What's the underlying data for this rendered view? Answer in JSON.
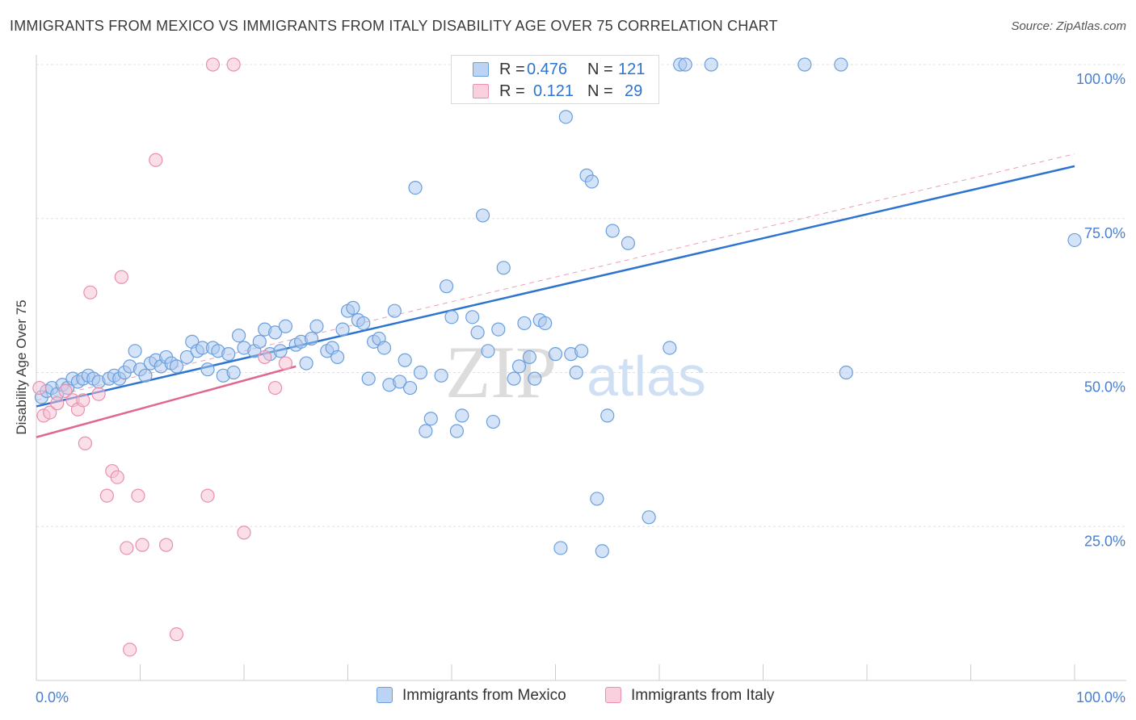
{
  "title": "IMMIGRANTS FROM MEXICO VS IMMIGRANTS FROM ITALY DISABILITY AGE OVER 75 CORRELATION CHART",
  "source": "Source: ZipAtlas.com",
  "watermark": {
    "zip": "ZIP",
    "atlas": "atlas"
  },
  "legend": {
    "r_label": "R =",
    "n_label": "N =",
    "rows": [
      {
        "r": "0.476",
        "n": "121"
      },
      {
        "r": "0.121",
        "n": "29"
      }
    ]
  },
  "chart_data": {
    "type": "scatter",
    "xlabel": "",
    "ylabel": "Disability Age Over 75",
    "xlim": [
      0,
      100
    ],
    "ylim": [
      0,
      100
    ],
    "x_tick_labels": {
      "left": "0.0%",
      "right": "100.0%"
    },
    "y_tick_labels": [
      {
        "value": 25,
        "label": "25.0%"
      },
      {
        "value": 50,
        "label": "50.0%"
      },
      {
        "value": 75,
        "label": "75.0%"
      },
      {
        "value": 100,
        "label": "100.0%"
      }
    ],
    "grid": true,
    "legend_position": "top-center",
    "colors": {
      "mexico_fill": "#aac8f0",
      "mexico_stroke": "#6a9fdc",
      "mexico_line": "#2d74d0",
      "italy_fill": "#f8c0d2",
      "italy_stroke": "#e890ad",
      "italy_line": "#e06890",
      "axis_text": "#4a7fd0"
    },
    "series": [
      {
        "name": "Immigrants from Mexico",
        "trend": {
          "x": [
            0,
            100
          ],
          "y": [
            44.5,
            83.5
          ]
        },
        "trend_extension": {
          "x": [
            0,
            100
          ],
          "y": [
            45.5,
            85.5
          ]
        },
        "points": [
          [
            0.5,
            46
          ],
          [
            1,
            47
          ],
          [
            1.5,
            47.5
          ],
          [
            2,
            46.5
          ],
          [
            2.5,
            48
          ],
          [
            3,
            47.5
          ],
          [
            3.5,
            49
          ],
          [
            4,
            48.5
          ],
          [
            4.5,
            49
          ],
          [
            5,
            49.5
          ],
          [
            5.5,
            49
          ],
          [
            6,
            48.5
          ],
          [
            7,
            49
          ],
          [
            7.5,
            49.5
          ],
          [
            8,
            49
          ],
          [
            8.5,
            50
          ],
          [
            9,
            51
          ],
          [
            9.5,
            53.5
          ],
          [
            10,
            50.5
          ],
          [
            10.5,
            49.5
          ],
          [
            11,
            51.5
          ],
          [
            11.5,
            52
          ],
          [
            12,
            51
          ],
          [
            12.5,
            52.5
          ],
          [
            13,
            51.5
          ],
          [
            13.5,
            51
          ],
          [
            14.5,
            52.5
          ],
          [
            15,
            55
          ],
          [
            15.5,
            53.5
          ],
          [
            16,
            54
          ],
          [
            16.5,
            50.5
          ],
          [
            17,
            54
          ],
          [
            17.5,
            53.5
          ],
          [
            18,
            49.5
          ],
          [
            18.5,
            53
          ],
          [
            19,
            50
          ],
          [
            19.5,
            56
          ],
          [
            20,
            54
          ],
          [
            21,
            53.5
          ],
          [
            21.5,
            55
          ],
          [
            22,
            57
          ],
          [
            22.5,
            53
          ],
          [
            23,
            56.5
          ],
          [
            23.5,
            53.5
          ],
          [
            24,
            57.5
          ],
          [
            25,
            54.5
          ],
          [
            25.5,
            55
          ],
          [
            26,
            51.5
          ],
          [
            26.5,
            55.5
          ],
          [
            27,
            57.5
          ],
          [
            28,
            53.5
          ],
          [
            28.5,
            54
          ],
          [
            29,
            52.5
          ],
          [
            29.5,
            57
          ],
          [
            30,
            60
          ],
          [
            30.5,
            60.5
          ],
          [
            31,
            58.5
          ],
          [
            31.5,
            58
          ],
          [
            32,
            49
          ],
          [
            32.5,
            55
          ],
          [
            33,
            55.5
          ],
          [
            33.5,
            54
          ],
          [
            34,
            48
          ],
          [
            34.5,
            60
          ],
          [
            35,
            48.5
          ],
          [
            35.5,
            52
          ],
          [
            36,
            47.5
          ],
          [
            36.5,
            80
          ],
          [
            37,
            50
          ],
          [
            38,
            42.5
          ],
          [
            37.5,
            40.5
          ],
          [
            39,
            49.5
          ],
          [
            39.5,
            64
          ],
          [
            40,
            59
          ],
          [
            40.5,
            40.5
          ],
          [
            41,
            43
          ],
          [
            42,
            59
          ],
          [
            42.5,
            56.5
          ],
          [
            43,
            75.5
          ],
          [
            43.5,
            53.5
          ],
          [
            44,
            42
          ],
          [
            44.5,
            57
          ],
          [
            45,
            67
          ],
          [
            46,
            49
          ],
          [
            46.5,
            51
          ],
          [
            47.5,
            52.5
          ],
          [
            47,
            58
          ],
          [
            48,
            49
          ],
          [
            48.5,
            58.5
          ],
          [
            49,
            58
          ],
          [
            50,
            53
          ],
          [
            50.5,
            21.5
          ],
          [
            51,
            91.5
          ],
          [
            51.5,
            53
          ],
          [
            52,
            50
          ],
          [
            52.5,
            53.5
          ],
          [
            53,
            82
          ],
          [
            53.5,
            81
          ],
          [
            54,
            29.5
          ],
          [
            54.5,
            21
          ],
          [
            55,
            43
          ],
          [
            55.5,
            73
          ],
          [
            56,
            100
          ],
          [
            57,
            71
          ],
          [
            57.5,
            96.5
          ],
          [
            58,
            100
          ],
          [
            59,
            26.5
          ],
          [
            61,
            54
          ],
          [
            62,
            100
          ],
          [
            62.5,
            100
          ],
          [
            65,
            100
          ],
          [
            74,
            100
          ],
          [
            77.5,
            100
          ],
          [
            78,
            50
          ],
          [
            100,
            71.5
          ]
        ]
      },
      {
        "name": "Immigrants from Italy",
        "trend": {
          "x": [
            0,
            25
          ],
          "y": [
            39.5,
            51
          ]
        },
        "points": [
          [
            0.3,
            47.5
          ],
          [
            0.7,
            43
          ],
          [
            1.3,
            43.5
          ],
          [
            2,
            45
          ],
          [
            2.8,
            47
          ],
          [
            3.5,
            45.5
          ],
          [
            4,
            44
          ],
          [
            4.5,
            45.5
          ],
          [
            4.7,
            38.5
          ],
          [
            5.2,
            63
          ],
          [
            6,
            46.5
          ],
          [
            6.8,
            30
          ],
          [
            7.3,
            34
          ],
          [
            7.8,
            33
          ],
          [
            8.2,
            65.5
          ],
          [
            8.7,
            21.5
          ],
          [
            9,
            5
          ],
          [
            9.8,
            30
          ],
          [
            10.2,
            22
          ],
          [
            11.5,
            84.5
          ],
          [
            12.5,
            22
          ],
          [
            13.5,
            7.5
          ],
          [
            16.5,
            30
          ],
          [
            17,
            100
          ],
          [
            19,
            100
          ],
          [
            20,
            24
          ],
          [
            22,
            52.5
          ],
          [
            23,
            47.5
          ],
          [
            24,
            51.5
          ]
        ]
      }
    ]
  }
}
